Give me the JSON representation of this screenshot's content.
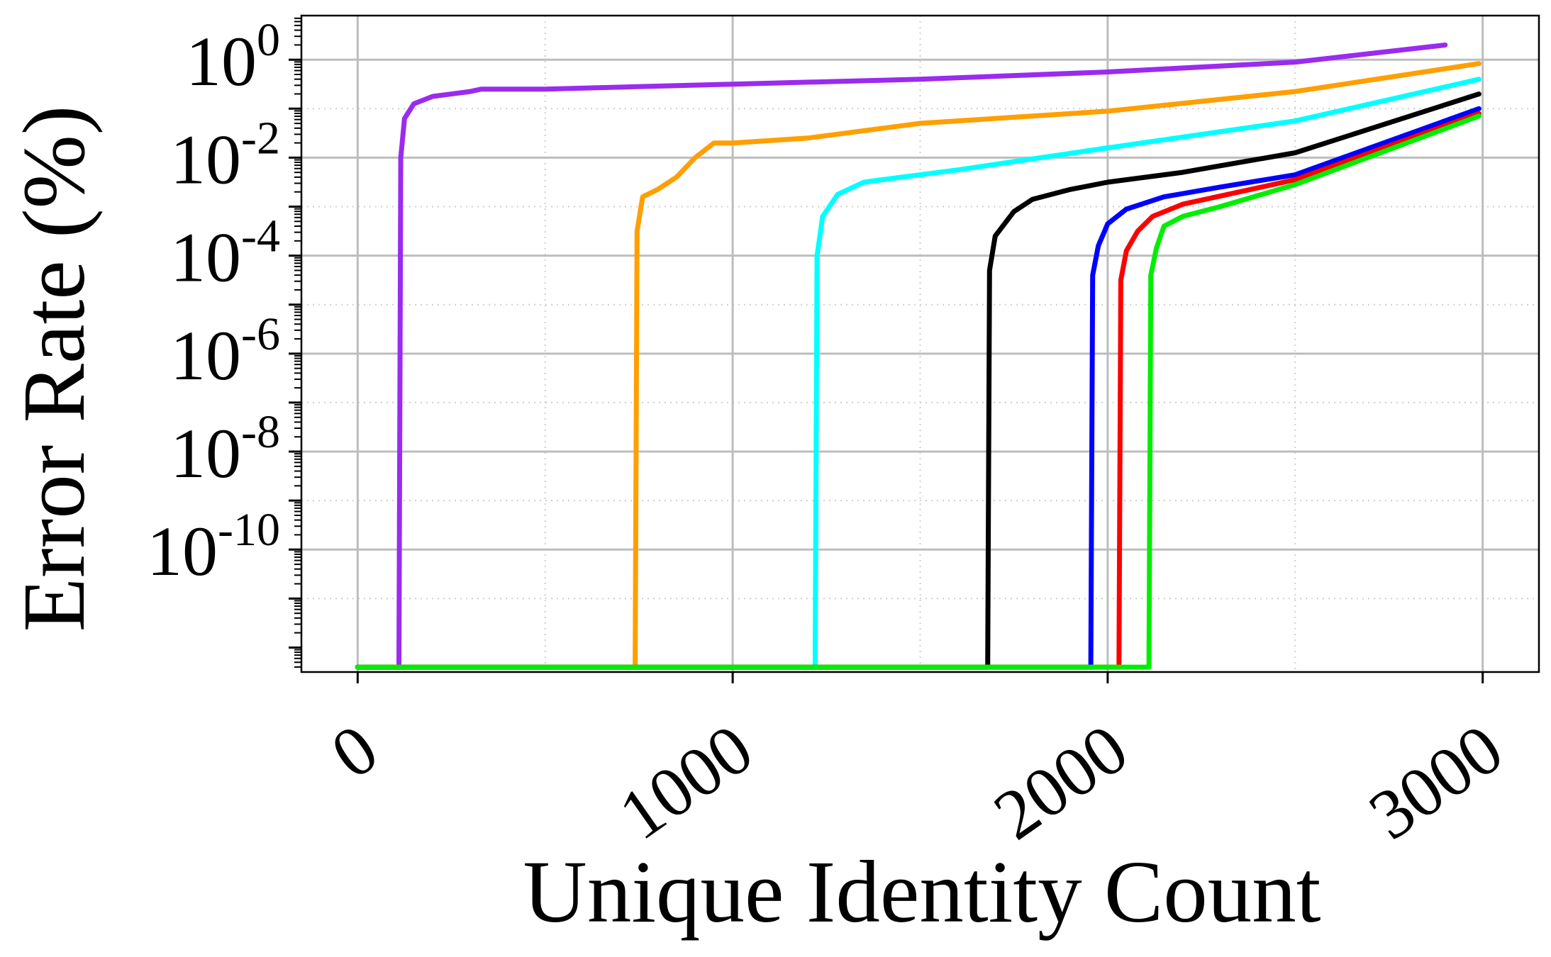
{
  "chart_data": {
    "type": "line",
    "title": "",
    "xlabel": "Unique Identity Count",
    "ylabel": "Error Rate (%)",
    "x_scale": "linear",
    "y_scale": "log",
    "xlim": [
      -150,
      3150
    ],
    "ylim_log10": [
      -12.5,
      0.9
    ],
    "x_ticks": [
      0,
      1000,
      2000,
      3000
    ],
    "x_tick_labels": [
      "0",
      "1000",
      "2000",
      "3000"
    ],
    "y_ticks_log10": [
      -10,
      -8,
      -6,
      -4,
      -2,
      0
    ],
    "y_tick_labels": [
      {
        "base": "10",
        "exp": "-10"
      },
      {
        "base": "10",
        "exp": "-8"
      },
      {
        "base": "10",
        "exp": "-6"
      },
      {
        "base": "10",
        "exp": "-4"
      },
      {
        "base": "10",
        "exp": "-2"
      },
      {
        "base": "10",
        "exp": "0"
      }
    ],
    "grid": true,
    "legend": "none",
    "series": [
      {
        "color": "#9a2bef",
        "points": [
          [
            0,
            -12.4
          ],
          [
            110,
            -12.4
          ],
          [
            115,
            -2
          ],
          [
            125,
            -1.2
          ],
          [
            150,
            -0.9
          ],
          [
            200,
            -0.75
          ],
          [
            300,
            -0.65
          ],
          [
            330,
            -0.6
          ],
          [
            500,
            -0.6
          ],
          [
            1000,
            -0.5
          ],
          [
            1500,
            -0.4
          ],
          [
            2000,
            -0.25
          ],
          [
            2500,
            -0.05
          ],
          [
            2900,
            0.3
          ]
        ]
      },
      {
        "color": "#ff9f00",
        "points": [
          [
            0,
            -12.4
          ],
          [
            740,
            -12.4
          ],
          [
            745,
            -3.5
          ],
          [
            760,
            -2.8
          ],
          [
            800,
            -2.65
          ],
          [
            850,
            -2.4
          ],
          [
            900,
            -2
          ],
          [
            950,
            -1.7
          ],
          [
            1000,
            -1.7
          ],
          [
            1200,
            -1.6
          ],
          [
            1500,
            -1.3
          ],
          [
            2000,
            -1.05
          ],
          [
            2500,
            -0.65
          ],
          [
            2990,
            -0.08
          ]
        ]
      },
      {
        "color": "#00ffff",
        "points": [
          [
            0,
            -12.4
          ],
          [
            1220,
            -12.4
          ],
          [
            1225,
            -4
          ],
          [
            1240,
            -3.2
          ],
          [
            1280,
            -2.75
          ],
          [
            1350,
            -2.5
          ],
          [
            1450,
            -2.4
          ],
          [
            1600,
            -2.25
          ],
          [
            2000,
            -1.8
          ],
          [
            2500,
            -1.25
          ],
          [
            2990,
            -0.4
          ]
        ]
      },
      {
        "color": "#000000",
        "points": [
          [
            0,
            -12.4
          ],
          [
            1680,
            -12.4
          ],
          [
            1685,
            -4.3
          ],
          [
            1700,
            -3.6
          ],
          [
            1750,
            -3.1
          ],
          [
            1800,
            -2.85
          ],
          [
            1900,
            -2.65
          ],
          [
            2000,
            -2.5
          ],
          [
            2200,
            -2.3
          ],
          [
            2500,
            -1.9
          ],
          [
            2990,
            -0.7
          ]
        ]
      },
      {
        "color": "#0000ff",
        "points": [
          [
            0,
            -12.4
          ],
          [
            1955,
            -12.4
          ],
          [
            1960,
            -4.4
          ],
          [
            1975,
            -3.8
          ],
          [
            2000,
            -3.35
          ],
          [
            2050,
            -3.05
          ],
          [
            2150,
            -2.8
          ],
          [
            2300,
            -2.6
          ],
          [
            2500,
            -2.35
          ],
          [
            2990,
            -1
          ]
        ]
      },
      {
        "color": "#ff0000",
        "points": [
          [
            0,
            -12.4
          ],
          [
            2030,
            -12.4
          ],
          [
            2035,
            -4.5
          ],
          [
            2050,
            -3.9
          ],
          [
            2080,
            -3.5
          ],
          [
            2120,
            -3.2
          ],
          [
            2200,
            -2.95
          ],
          [
            2350,
            -2.7
          ],
          [
            2500,
            -2.45
          ],
          [
            2990,
            -1.1
          ]
        ]
      },
      {
        "color": "#00ee00",
        "points": [
          [
            0,
            -12.4
          ],
          [
            2110,
            -12.4
          ],
          [
            2115,
            -4.4
          ],
          [
            2130,
            -3.85
          ],
          [
            2150,
            -3.4
          ],
          [
            2200,
            -3.2
          ],
          [
            2300,
            -3
          ],
          [
            2500,
            -2.55
          ],
          [
            2990,
            -1.15
          ]
        ]
      }
    ]
  }
}
